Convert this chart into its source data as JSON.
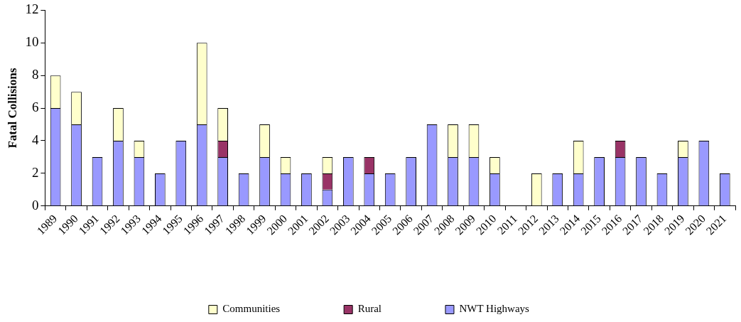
{
  "chart_data": {
    "type": "bar",
    "stacked": true,
    "ylabel": "Fatal Collisions",
    "categories": [
      "1989",
      "1990",
      "1991",
      "1992",
      "1993",
      "1994",
      "1995",
      "1996",
      "1997",
      "1998",
      "1999",
      "2000",
      "2001",
      "2002",
      "2003",
      "2004",
      "2005",
      "2006",
      "2007",
      "2008",
      "2009",
      "2010",
      "2011",
      "2012",
      "2013",
      "2014",
      "2015",
      "2016",
      "2017",
      "2018",
      "2019",
      "2020",
      "2021"
    ],
    "series": [
      {
        "name": "NWT Highways",
        "color": "#9999ff",
        "values": [
          6,
          5,
          3,
          4,
          3,
          2,
          4,
          5,
          3,
          2,
          3,
          2,
          2,
          1,
          3,
          2,
          2,
          3,
          5,
          3,
          3,
          2,
          null,
          null,
          2,
          2,
          3,
          3,
          3,
          2,
          3,
          4,
          2
        ]
      },
      {
        "name": "Rural",
        "color": "#993366",
        "values": [
          null,
          null,
          null,
          null,
          null,
          null,
          null,
          null,
          1,
          null,
          null,
          null,
          null,
          1,
          null,
          1,
          null,
          null,
          null,
          null,
          null,
          null,
          null,
          null,
          null,
          null,
          null,
          1,
          null,
          null,
          null,
          null,
          null
        ]
      },
      {
        "name": "Communities",
        "color": "#ffffcc",
        "values": [
          2,
          2,
          null,
          2,
          1,
          null,
          null,
          5,
          2,
          null,
          2,
          1,
          null,
          1,
          null,
          null,
          null,
          null,
          null,
          2,
          2,
          1,
          null,
          2,
          null,
          2,
          null,
          null,
          null,
          null,
          1,
          null,
          null
        ]
      }
    ],
    "ylim": [
      0,
      12
    ],
    "yticks": [
      0,
      2,
      4,
      6,
      8,
      10,
      12
    ],
    "grid": false,
    "legend": "bottom"
  }
}
